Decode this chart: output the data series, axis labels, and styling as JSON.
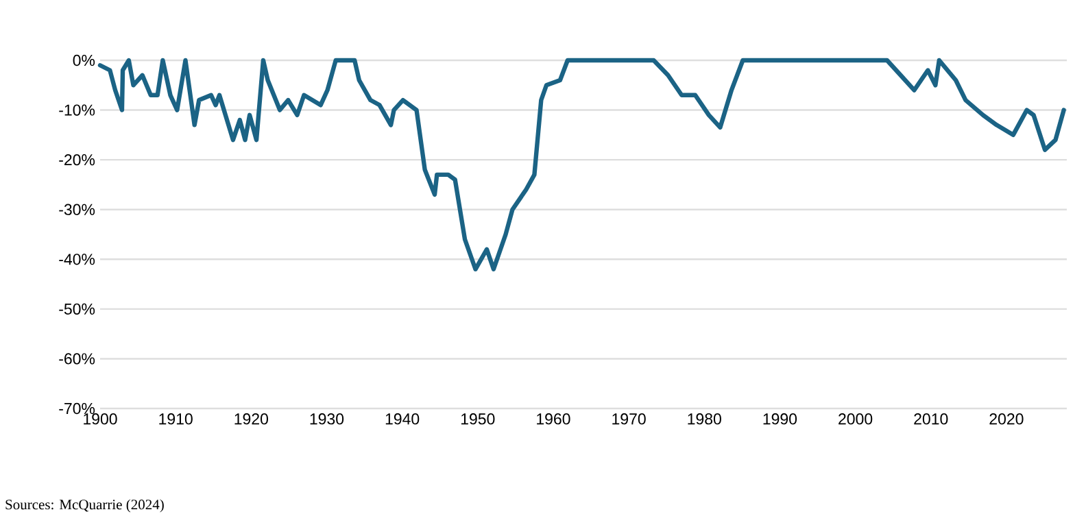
{
  "chart_data": {
    "type": "line",
    "annotations": [
      "Sources: McQuarrie (2024)"
    ],
    "series": [
      {
        "color": "#1b6385",
        "x": [
          1900,
          1901.3,
          1902,
          1902.9,
          1903,
          1903.8,
          1904.4,
          1905.6,
          1906.7,
          1907.6,
          1908.3,
          1909.3,
          1910.2,
          1911.3,
          1912.5,
          1913.1,
          1914.7,
          1915.3,
          1915.8,
          1917.6,
          1918.5,
          1919.2,
          1919.8,
          1920.7,
          1921.6,
          1922.2,
          1923.8,
          1924.9,
          1926.1,
          1927,
          1929.2,
          1930.1,
          1931.2,
          1933.7,
          1934.3,
          1935.8,
          1937,
          1938.5,
          1938.9,
          1940.1,
          1941.9,
          1943,
          1944.3,
          1944.6,
          1946.1,
          1947,
          1948.3,
          1949.7,
          1951.2,
          1952.1,
          1953.7,
          1954.6,
          1956.4,
          1957.5,
          1958.4,
          1959.1,
          1960.9,
          1961.9,
          1973.3,
          1975.2,
          1977,
          1978.8,
          1980.6,
          1982.1,
          1983.6,
          1985.1,
          2004.2,
          2006,
          2007.8,
          2009.6,
          2010.6,
          2011.1,
          2013.3,
          2014.6,
          2016.9,
          2018.7,
          2020.9,
          2022.7,
          2023.6,
          2025.1,
          2026.5,
          2027.6
        ],
        "values": [
          -1,
          -2,
          -6,
          -10,
          -2,
          0,
          -5,
          -3,
          -7,
          -7,
          0,
          -7,
          -10,
          0,
          -13,
          -8,
          -7,
          -9,
          -7,
          -16,
          -12,
          -16,
          -11,
          -16,
          0,
          -4,
          -10,
          -8,
          -11,
          -7,
          -9,
          -6,
          0,
          0,
          -4,
          -8,
          -9,
          -13,
          -10,
          -8,
          -10,
          -22,
          -27,
          -23,
          -23,
          -24,
          -36,
          -42,
          -38,
          -42,
          -35,
          -30,
          -26,
          -23,
          -8,
          -5,
          -4,
          0,
          0,
          -3,
          -7,
          -7,
          -11,
          -13.5,
          -6,
          0,
          0,
          -3,
          -6,
          -2,
          -5,
          0,
          -4,
          -8,
          -11,
          -13,
          -15,
          -10,
          -11,
          -18,
          -16,
          -10
        ]
      }
    ],
    "xlim": [
      1900,
      2028
    ],
    "ylim": [
      -70,
      0
    ],
    "xticks": [
      1900,
      1910,
      1920,
      1930,
      1940,
      1950,
      1960,
      1970,
      1980,
      1990,
      2000,
      2010,
      2020
    ],
    "yticks": [
      {
        "value": 0,
        "label": "0%"
      },
      {
        "value": -10,
        "label": "-10%"
      },
      {
        "value": -20,
        "label": "-20%"
      },
      {
        "value": -30,
        "label": "-30%"
      },
      {
        "value": -40,
        "label": "-40%"
      },
      {
        "value": -50,
        "label": "-50%"
      },
      {
        "value": -60,
        "label": "-60%"
      },
      {
        "value": -70,
        "label": "-70%"
      }
    ],
    "grid": "y",
    "line_style": "solid"
  }
}
